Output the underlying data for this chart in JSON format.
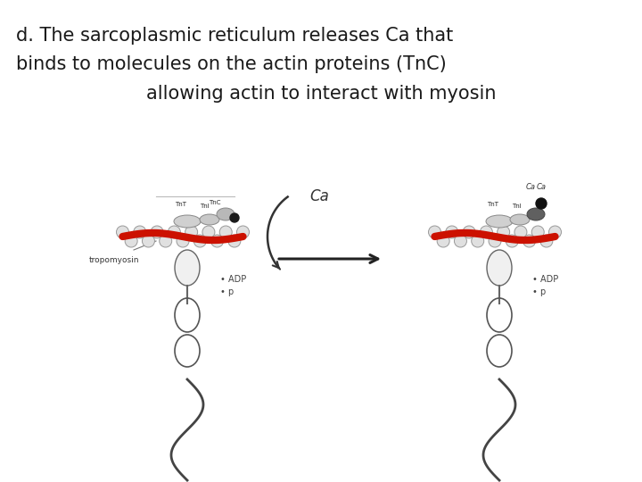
{
  "title_line1": "d. The sarcoplasmic reticulum releases Ca that",
  "title_line2": "binds to molecules on the actin proteins (TnC)",
  "title_line3": "allowing actin to interact with myosin",
  "bg_color": "#ffffff",
  "text_color": "#1a1a1a",
  "font_size_title": 15,
  "fig_width": 7.2,
  "fig_height": 5.4,
  "fig_dpi": 100
}
